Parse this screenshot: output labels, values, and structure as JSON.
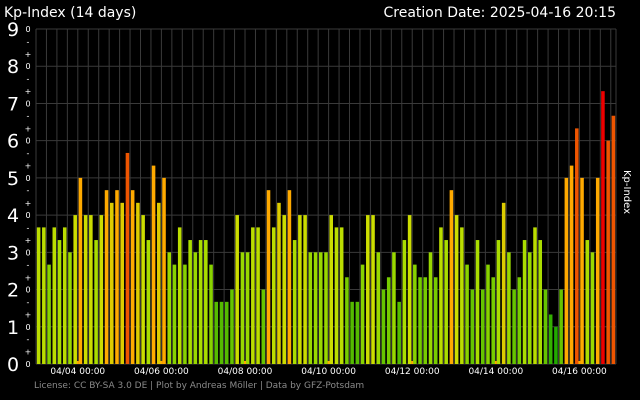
{
  "header": {
    "title": "Kp-Index (14 days)",
    "creation_date": "Creation Date: 2025-04-16 20:15"
  },
  "footer": {
    "license": "License: CC BY-SA 3.0 DE | Plot by Andreas Möller | Data by GFZ-Potsdam"
  },
  "colors": {
    "background": "#000000",
    "text": "#ffffff",
    "grid": "#3a3a3a",
    "footer_text": "#8a8a8a",
    "bar_low": "#22aa00",
    "bar_mid": "#aadd00",
    "bar_high": "#ffaa00",
    "bar_storm": "#ee5500",
    "bar_severe": "#ee0000"
  },
  "chart_data": {
    "type": "bar",
    "title": "Kp-Index (14 days)",
    "ylabel": "Kp-Index",
    "ylim": [
      0,
      9
    ],
    "grid": true,
    "y_ticks": [
      "0",
      "1",
      "2",
      "3",
      "4",
      "5",
      "6",
      "7",
      "8",
      "9"
    ],
    "y_minor_marks": [
      "0",
      "+",
      "-"
    ],
    "x_tick_labels": [
      "04/04 00:00",
      "04/06 00:00",
      "04/08 00:00",
      "04/10 00:00",
      "04/12 00:00",
      "04/14 00:00",
      "04/16 00:00"
    ],
    "start": "2025-04-03 00:00",
    "interval_hours": 3,
    "values": [
      3.67,
      3.67,
      2.67,
      3.67,
      3.33,
      3.67,
      3.0,
      4.0,
      5.0,
      4.0,
      4.0,
      3.33,
      4.0,
      4.67,
      4.33,
      4.67,
      4.33,
      5.67,
      4.67,
      4.33,
      4.0,
      3.33,
      5.33,
      4.33,
      5.0,
      3.0,
      2.67,
      3.67,
      2.67,
      3.33,
      3.0,
      3.33,
      3.33,
      2.67,
      1.67,
      1.67,
      1.67,
      2.0,
      4.0,
      3.0,
      3.0,
      3.67,
      3.67,
      2.0,
      4.67,
      3.67,
      4.33,
      4.0,
      4.67,
      3.33,
      4.0,
      4.0,
      3.0,
      3.0,
      3.0,
      3.0,
      4.0,
      3.67,
      3.67,
      2.33,
      1.67,
      1.67,
      2.67,
      4.0,
      4.0,
      3.0,
      2.0,
      2.33,
      3.0,
      1.67,
      3.33,
      4.0,
      2.67,
      2.33,
      2.33,
      3.0,
      2.33,
      3.67,
      3.33,
      4.67,
      4.0,
      3.67,
      2.67,
      2.0,
      3.33,
      2.0,
      2.67,
      2.33,
      3.33,
      4.33,
      3.0,
      2.0,
      2.33,
      3.33,
      3.0,
      3.67,
      3.33,
      2.0,
      1.33,
      1.0,
      2.0,
      5.0,
      5.33,
      6.33,
      5.0,
      3.33,
      3.0,
      5.0,
      7.33,
      6.0,
      6.67
    ]
  }
}
